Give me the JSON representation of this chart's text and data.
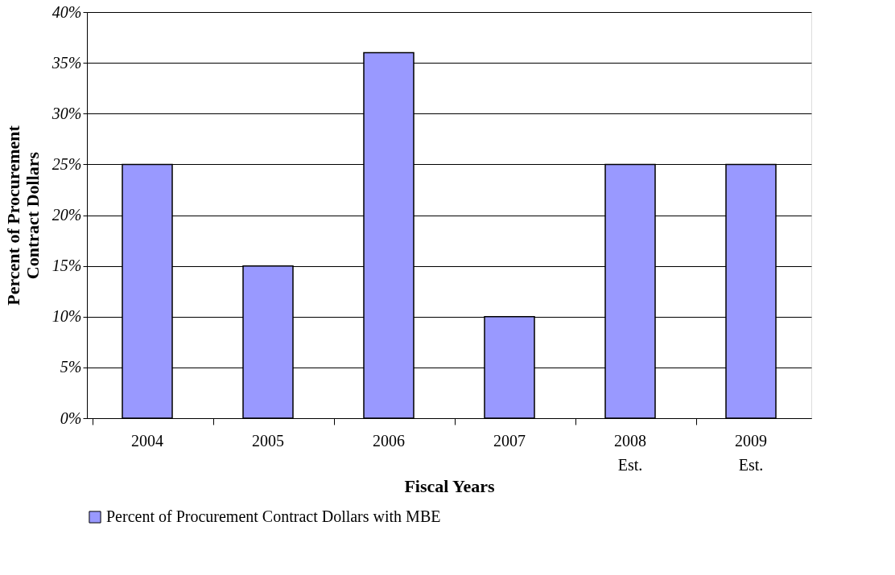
{
  "chart_data": {
    "type": "bar",
    "xlabel": "Fiscal Years",
    "ylabel": "Percent of Procurement Contract Dollars",
    "categories": [
      "2004",
      "2005",
      "2006",
      "2007",
      "2008 Est.",
      "2009 Est."
    ],
    "series": [
      {
        "name": "Percent of Procurement Contract Dollars with MBE",
        "color": "#9999ff",
        "values": [
          25,
          15,
          36,
          10,
          25,
          25
        ]
      }
    ],
    "ylim": [
      0,
      40
    ],
    "yticks": [
      {
        "value": 0,
        "label": "0%"
      },
      {
        "value": 5,
        "label": "5%"
      },
      {
        "value": 10,
        "label": "10%"
      },
      {
        "value": 15,
        "label": "15%"
      },
      {
        "value": 20,
        "label": "20%"
      },
      {
        "value": 25,
        "label": "25%"
      },
      {
        "value": 30,
        "label": "30%"
      },
      {
        "value": 35,
        "label": "35%"
      },
      {
        "value": 40,
        "label": "40%"
      }
    ],
    "grid": "y",
    "legend": "bottom"
  }
}
